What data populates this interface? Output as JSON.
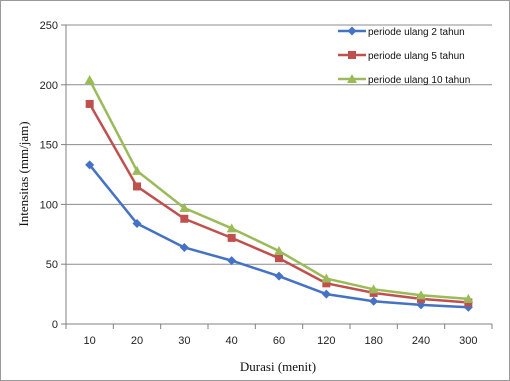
{
  "chart_data": {
    "type": "line",
    "categories": [
      "10",
      "20",
      "30",
      "40",
      "60",
      "120",
      "180",
      "240",
      "300"
    ],
    "series": [
      {
        "name": "periode ulang 2 tahun",
        "color": "#4472c4",
        "marker": "diamond",
        "values": [
          133,
          84,
          64,
          53,
          40,
          25,
          19,
          16,
          14
        ]
      },
      {
        "name": "periode ulang 5 tahun",
        "color": "#c0504d",
        "marker": "square",
        "values": [
          184,
          115,
          88,
          72,
          55,
          34,
          26,
          21,
          18
        ]
      },
      {
        "name": "periode ulang 10 tahun",
        "color": "#9bbb59",
        "marker": "triangle",
        "values": [
          204,
          128,
          97,
          80,
          61,
          38,
          29,
          24,
          21
        ]
      }
    ],
    "xlabel": "Durasi (menit)",
    "ylabel": "Intensitas (mm/jam)",
    "ylim": [
      0,
      250
    ],
    "yticks": [
      0,
      50,
      100,
      150,
      200,
      250
    ],
    "grid": "horizontal",
    "legend_position": "top-right"
  }
}
